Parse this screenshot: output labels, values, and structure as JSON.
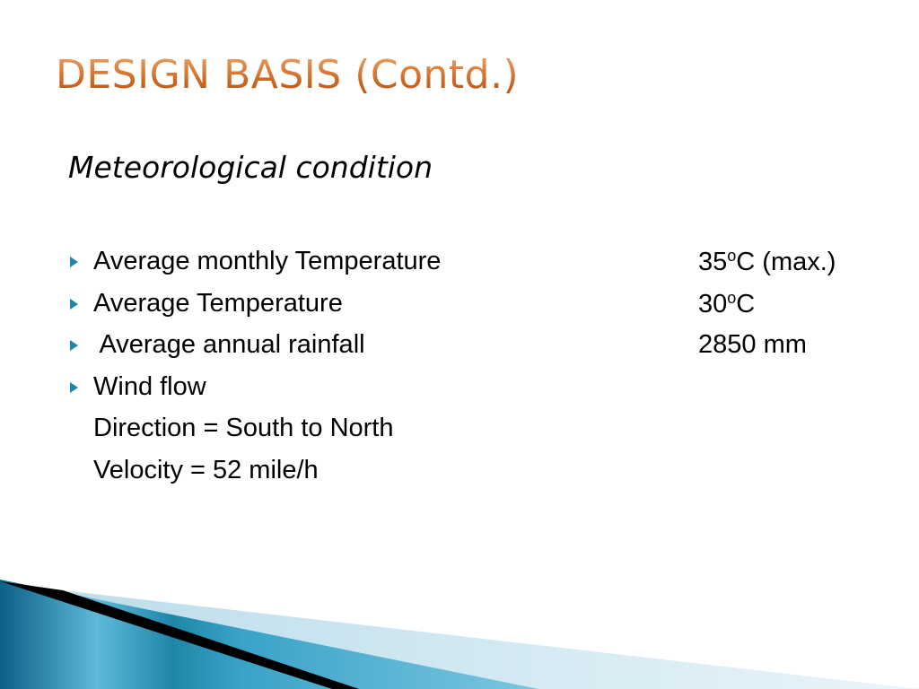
{
  "slide": {
    "title": "DESIGN BASIS (Contd.)",
    "subtitle": "Meteorological condition",
    "items": [
      {
        "label": "Average monthly Temperature",
        "value_num": "35",
        "value_sup": "o",
        "value_rest": "C (max.)",
        "bullet": "triangle-bullet-icon"
      },
      {
        "label": "Average Temperature",
        "value_num": "30",
        "value_sup": "o",
        "value_rest": "C",
        "bullet": "triangle-bullet-icon"
      },
      {
        "label": " Average annual rainfall",
        "value": "2850 mm",
        "bullet": "triangle-bullet-icon"
      },
      {
        "label": "Wind flow",
        "bullet": "triangle-bullet-icon"
      }
    ],
    "sub_items": [
      "Direction = South to North",
      "Velocity = 52 mile/h"
    ]
  },
  "colors": {
    "title_orange": "#d06a23",
    "bullet_teal": "#1f86a8",
    "band_dark": "#0d5f86",
    "band_light": "#5fb9d9",
    "band_pale": "#d6ebf3",
    "stripe_black": "#000000"
  }
}
